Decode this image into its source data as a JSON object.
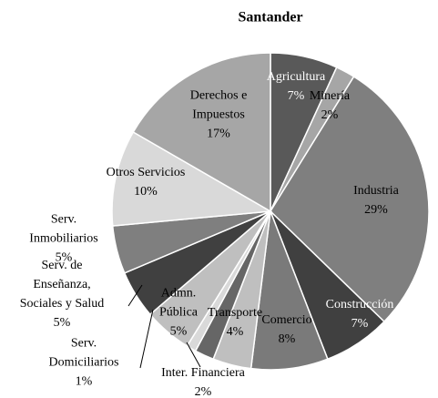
{
  "chart_data": {
    "type": "pie",
    "title": "Santander",
    "categories": [
      "Agricultura",
      "Minería",
      "Industria",
      "Construcción",
      "Comercio",
      "Transporte",
      "Inter. Financiera",
      "Serv. Domiciliarios",
      "Admn. Pública",
      "Serv. de Enseñanza, Sociales y Salud",
      "Serv. Inmobiliarios",
      "Otros Servicios",
      "Derechos e Impuestos"
    ],
    "values": [
      7,
      2,
      29,
      7,
      8,
      4,
      2,
      1,
      5,
      5,
      5,
      10,
      17
    ],
    "value_labels": [
      "7%",
      "2%",
      "29%",
      "7%",
      "8%",
      "4%",
      "2%",
      "1%",
      "5%",
      "5%",
      "5%",
      "10%",
      "17%"
    ],
    "colors": [
      "#595959",
      "#a6a6a6",
      "#7f7f7f",
      "#404040",
      "#7a7a7a",
      "#bfbfbf",
      "#666666",
      "#d9d9d9",
      "#bfbfbf",
      "#404040",
      "#7f7f7f",
      "#d9d9d9",
      "#a6a6a6"
    ]
  }
}
